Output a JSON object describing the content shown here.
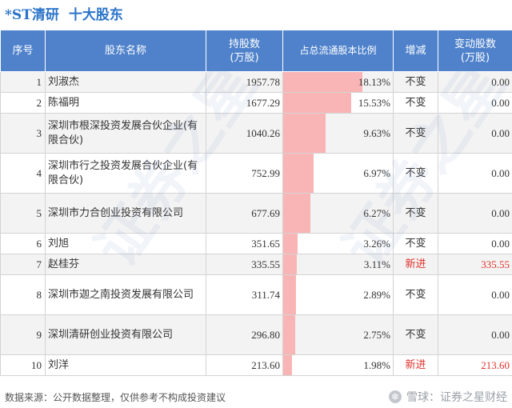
{
  "title": {
    "stock": "*ST清研",
    "subject": "十大股东"
  },
  "header": {
    "index": "序号",
    "name": "股东名称",
    "shares_line1": "持股数",
    "shares_line2": "(万股)",
    "ratio": "占总流通股本比例",
    "change": "增减",
    "delta_line1": "变动股数",
    "delta_line2": "(万股)"
  },
  "rows": [
    {
      "index": "1",
      "name": "刘淑杰",
      "shares": "1957.78",
      "ratio": "18.13%",
      "ratio_value": 18.13,
      "change": "不变",
      "delta": "0.00"
    },
    {
      "index": "2",
      "name": "陈福明",
      "shares": "1677.29",
      "ratio": "15.53%",
      "ratio_value": 15.53,
      "change": "不变",
      "delta": "0.00"
    },
    {
      "index": "3",
      "name": "深圳市根深投资发展合伙企业(有限合伙)",
      "shares": "1040.26",
      "ratio": "9.63%",
      "ratio_value": 9.63,
      "change": "不变",
      "delta": "0.00"
    },
    {
      "index": "4",
      "name": "深圳市行之投资发展合伙企业(有限合伙)",
      "shares": "752.99",
      "ratio": "6.97%",
      "ratio_value": 6.97,
      "change": "不变",
      "delta": "0.00"
    },
    {
      "index": "5",
      "name": "深圳市力合创业投资有限公司",
      "shares": "677.69",
      "ratio": "6.27%",
      "ratio_value": 6.27,
      "change": "不变",
      "delta": "0.00"
    },
    {
      "index": "6",
      "name": "刘旭",
      "shares": "351.65",
      "ratio": "3.26%",
      "ratio_value": 3.26,
      "change": "不变",
      "delta": "0.00"
    },
    {
      "index": "7",
      "name": "赵桂芬",
      "shares": "335.55",
      "ratio": "3.11%",
      "ratio_value": 3.11,
      "change": "新进",
      "delta": "335.55"
    },
    {
      "index": "8",
      "name": "深圳市迦之南投资发展有限公司",
      "shares": "311.74",
      "ratio": "2.89%",
      "ratio_value": 2.89,
      "change": "不变",
      "delta": "0.00"
    },
    {
      "index": "9",
      "name": "深圳清研创业投资有限公司",
      "shares": "296.80",
      "ratio": "2.75%",
      "ratio_value": 2.75,
      "change": "不变",
      "delta": "0.00"
    },
    {
      "index": "10",
      "name": "刘洋",
      "shares": "213.60",
      "ratio": "1.98%",
      "ratio_value": 1.98,
      "change": "新进",
      "delta": "213.60"
    }
  ],
  "ratio_bar_max": 25,
  "colors": {
    "header_bg": "#4f82cb",
    "bar_fill": "#f9b5b5",
    "new_entry": "#e0302b",
    "title": "#2a73c9"
  },
  "watermark": {
    "left": "证券之星",
    "right": "证券之星"
  },
  "footer": {
    "source": "数据来源：公开数据整理，仅供参考不构成投资建议",
    "brand_icon": "snowball-icon",
    "brand": "雪球：证券之星财经"
  }
}
